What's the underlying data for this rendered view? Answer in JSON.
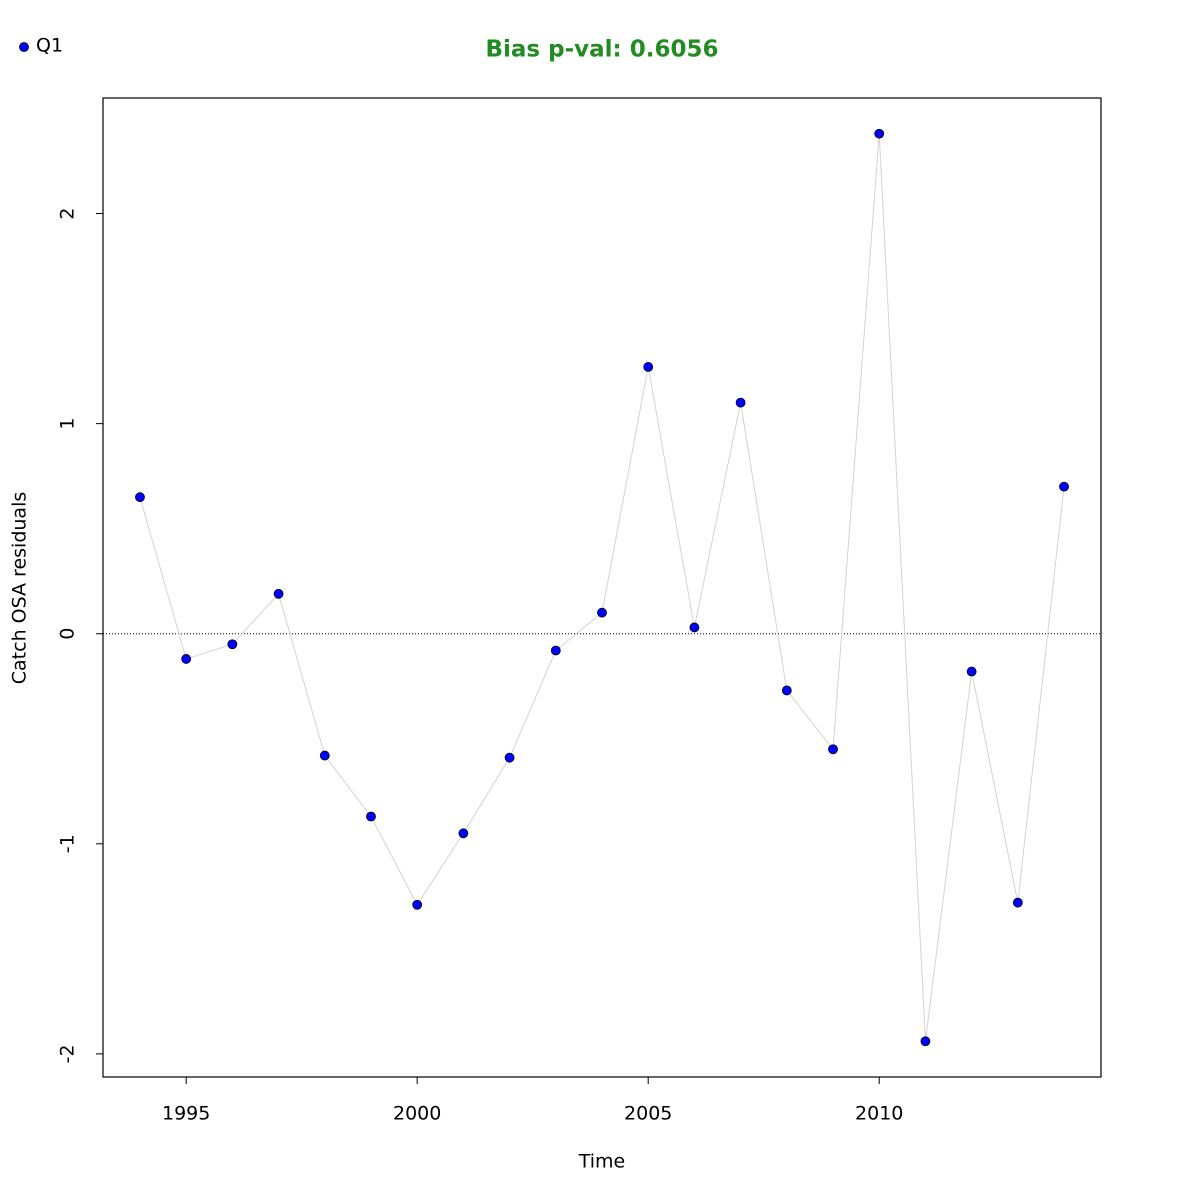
{
  "chart_data": {
    "type": "line",
    "title": "Bias p-val: 0.6056",
    "title_color": "#228b22",
    "x_label": "Time",
    "y_label": "Catch OSA residuals",
    "x": [
      1994,
      1995,
      1996,
      1997,
      1998,
      1999,
      2000,
      2001,
      2002,
      2003,
      2004,
      2005,
      2006,
      2007,
      2008,
      2009,
      2010,
      2011,
      2012,
      2013,
      2014
    ],
    "series": [
      {
        "name": "Q1",
        "color": "#0000ff",
        "line_color": "#d3d3d3",
        "values": [
          0.65,
          -0.12,
          -0.05,
          0.19,
          -0.58,
          -0.87,
          -1.29,
          -0.95,
          -0.59,
          -0.08,
          0.1,
          1.27,
          0.03,
          1.1,
          -0.27,
          -0.55,
          2.38,
          -1.94,
          -0.18,
          -1.28,
          0.7
        ]
      }
    ],
    "xlim": [
      1993.2,
      2014.8
    ],
    "xticks": [
      1995,
      2000,
      2005,
      2010
    ],
    "ylim": [
      -2.11,
      2.55
    ],
    "yticks": [
      -2,
      -1,
      0,
      1,
      2
    ],
    "hline": 0,
    "legend": "top-left"
  }
}
